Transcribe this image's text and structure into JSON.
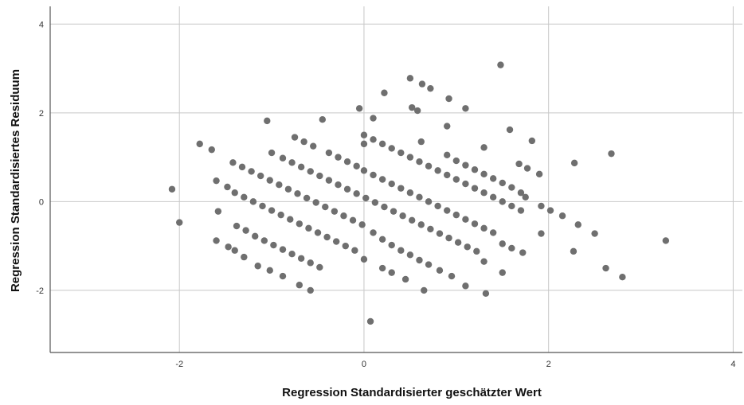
{
  "chart_data": {
    "type": "scatter",
    "title": "",
    "xlabel": "Regression Standardisierter geschätzter Wert",
    "ylabel": "Regression Standardisiertes Residuum",
    "xlim": [
      -3.4,
      4.1
    ],
    "ylim": [
      -3.4,
      4.4
    ],
    "xticks": [
      -2,
      0,
      2,
      4
    ],
    "yticks": [
      -2,
      0,
      2,
      4
    ],
    "grid": true,
    "legend": "none",
    "colors": {
      "point": "#6f6f6f",
      "grid": "#c8c8c8",
      "axis": "#555555"
    },
    "series": [
      {
        "values": [
          [
            -2.08,
            0.28
          ],
          [
            -2.0,
            -0.47
          ],
          [
            -1.78,
            1.3
          ],
          [
            -1.65,
            1.17
          ],
          [
            -1.6,
            0.47
          ],
          [
            -1.58,
            -0.22
          ],
          [
            -1.6,
            -0.88
          ],
          [
            -1.47,
            -1.02
          ],
          [
            -1.4,
            -1.1
          ],
          [
            -1.3,
            -1.25
          ],
          [
            -1.15,
            -1.45
          ],
          [
            -1.02,
            -1.55
          ],
          [
            -0.88,
            -1.68
          ],
          [
            -0.7,
            -1.88
          ],
          [
            -0.58,
            -2.0
          ],
          [
            -1.48,
            0.33
          ],
          [
            -1.4,
            0.2
          ],
          [
            -1.3,
            0.1
          ],
          [
            -1.2,
            0.0
          ],
          [
            -1.1,
            -0.1
          ],
          [
            -1.0,
            -0.2
          ],
          [
            -0.9,
            -0.3
          ],
          [
            -0.8,
            -0.4
          ],
          [
            -0.7,
            -0.5
          ],
          [
            -0.6,
            -0.6
          ],
          [
            -0.5,
            -0.7
          ],
          [
            -0.4,
            -0.8
          ],
          [
            -0.3,
            -0.9
          ],
          [
            -0.2,
            -1.0
          ],
          [
            -0.1,
            -1.1
          ],
          [
            0.0,
            -1.3
          ],
          [
            0.2,
            -1.5
          ],
          [
            0.3,
            -1.6
          ],
          [
            0.45,
            -1.75
          ],
          [
            0.65,
            -2.0
          ],
          [
            -1.38,
            -0.55
          ],
          [
            -1.28,
            -0.65
          ],
          [
            -1.18,
            -0.78
          ],
          [
            -1.08,
            -0.88
          ],
          [
            -0.98,
            -0.98
          ],
          [
            -0.88,
            -1.08
          ],
          [
            -0.78,
            -1.18
          ],
          [
            -0.68,
            -1.28
          ],
          [
            -0.58,
            -1.38
          ],
          [
            -0.48,
            -1.48
          ],
          [
            -1.42,
            0.88
          ],
          [
            -1.32,
            0.78
          ],
          [
            -1.22,
            0.68
          ],
          [
            -1.12,
            0.58
          ],
          [
            -1.02,
            0.48
          ],
          [
            -0.92,
            0.38
          ],
          [
            -0.82,
            0.28
          ],
          [
            -0.72,
            0.18
          ],
          [
            -0.62,
            0.08
          ],
          [
            -0.52,
            -0.02
          ],
          [
            -0.42,
            -0.12
          ],
          [
            -0.32,
            -0.22
          ],
          [
            -0.22,
            -0.32
          ],
          [
            -0.12,
            -0.42
          ],
          [
            -0.02,
            -0.52
          ],
          [
            0.1,
            -0.7
          ],
          [
            0.2,
            -0.85
          ],
          [
            0.3,
            -0.98
          ],
          [
            0.4,
            -1.1
          ],
          [
            0.5,
            -1.2
          ],
          [
            0.6,
            -1.32
          ],
          [
            0.7,
            -1.42
          ],
          [
            0.82,
            -1.55
          ],
          [
            0.95,
            -1.68
          ],
          [
            -1.05,
            1.82
          ],
          [
            -1.0,
            1.1
          ],
          [
            -0.88,
            0.98
          ],
          [
            -0.78,
            0.88
          ],
          [
            -0.68,
            0.78
          ],
          [
            -0.58,
            0.68
          ],
          [
            -0.48,
            0.58
          ],
          [
            -0.38,
            0.48
          ],
          [
            -0.28,
            0.38
          ],
          [
            -0.18,
            0.28
          ],
          [
            -0.08,
            0.18
          ],
          [
            0.02,
            0.08
          ],
          [
            0.12,
            -0.02
          ],
          [
            0.22,
            -0.12
          ],
          [
            0.32,
            -0.22
          ],
          [
            0.42,
            -0.32
          ],
          [
            0.52,
            -0.42
          ],
          [
            0.62,
            -0.52
          ],
          [
            0.72,
            -0.62
          ],
          [
            0.82,
            -0.72
          ],
          [
            0.92,
            -0.82
          ],
          [
            1.02,
            -0.92
          ],
          [
            1.12,
            -1.02
          ],
          [
            1.22,
            -1.12
          ],
          [
            -0.75,
            1.45
          ],
          [
            -0.65,
            1.35
          ],
          [
            -0.55,
            1.25
          ],
          [
            -0.45,
            1.85
          ],
          [
            -0.38,
            1.1
          ],
          [
            -0.28,
            1.0
          ],
          [
            -0.18,
            0.9
          ],
          [
            -0.08,
            0.8
          ],
          [
            0.0,
            0.7
          ],
          [
            0.1,
            0.6
          ],
          [
            0.2,
            0.5
          ],
          [
            0.3,
            0.4
          ],
          [
            0.4,
            0.3
          ],
          [
            0.5,
            0.2
          ],
          [
            0.6,
            0.1
          ],
          [
            0.7,
            0.0
          ],
          [
            0.8,
            -0.1
          ],
          [
            0.9,
            -0.2
          ],
          [
            1.0,
            -0.3
          ],
          [
            1.1,
            -0.4
          ],
          [
            1.2,
            -0.5
          ],
          [
            1.3,
            -0.6
          ],
          [
            1.4,
            -0.7
          ],
          [
            1.5,
            -0.95
          ],
          [
            1.6,
            -1.05
          ],
          [
            1.72,
            -1.15
          ],
          [
            1.3,
            -1.35
          ],
          [
            1.1,
            -1.9
          ],
          [
            1.32,
            -2.07
          ],
          [
            1.5,
            -1.6
          ],
          [
            -0.05,
            2.1
          ],
          [
            0.1,
            1.88
          ],
          [
            0.22,
            2.45
          ],
          [
            0.5,
            2.78
          ],
          [
            0.63,
            2.65
          ],
          [
            0.72,
            2.55
          ],
          [
            0.52,
            2.12
          ],
          [
            0.58,
            2.05
          ],
          [
            0.92,
            2.32
          ],
          [
            0.9,
            1.7
          ],
          [
            1.1,
            2.1
          ],
          [
            1.3,
            1.22
          ],
          [
            1.48,
            3.08
          ],
          [
            1.58,
            1.62
          ],
          [
            1.82,
            1.37
          ],
          [
            1.68,
            0.85
          ],
          [
            1.77,
            0.75
          ],
          [
            1.9,
            0.62
          ],
          [
            0.0,
            1.5
          ],
          [
            0.1,
            1.4
          ],
          [
            0.2,
            1.3
          ],
          [
            0.3,
            1.2
          ],
          [
            0.4,
            1.1
          ],
          [
            0.5,
            1.0
          ],
          [
            0.6,
            0.9
          ],
          [
            0.7,
            0.8
          ],
          [
            0.8,
            0.7
          ],
          [
            0.9,
            0.6
          ],
          [
            1.0,
            0.5
          ],
          [
            1.1,
            0.4
          ],
          [
            1.2,
            0.3
          ],
          [
            1.3,
            0.2
          ],
          [
            1.4,
            0.1
          ],
          [
            1.5,
            0.0
          ],
          [
            1.6,
            -0.1
          ],
          [
            1.7,
            -0.2
          ],
          [
            0.0,
            1.3
          ],
          [
            0.62,
            1.35
          ],
          [
            0.9,
            1.05
          ],
          [
            1.0,
            0.92
          ],
          [
            1.1,
            0.82
          ],
          [
            1.2,
            0.72
          ],
          [
            1.3,
            0.62
          ],
          [
            1.4,
            0.52
          ],
          [
            1.5,
            0.42
          ],
          [
            1.6,
            0.32
          ],
          [
            1.7,
            0.2
          ],
          [
            1.75,
            0.1
          ],
          [
            1.92,
            -0.1
          ],
          [
            2.02,
            -0.2
          ],
          [
            2.15,
            -0.32
          ],
          [
            1.92,
            -0.72
          ],
          [
            2.28,
            0.87
          ],
          [
            2.32,
            -0.52
          ],
          [
            2.5,
            -0.72
          ],
          [
            2.27,
            -1.12
          ],
          [
            2.62,
            -1.5
          ],
          [
            2.68,
            1.08
          ],
          [
            2.8,
            -1.7
          ],
          [
            3.27,
            -0.88
          ],
          [
            0.07,
            -2.7
          ]
        ]
      }
    ]
  }
}
